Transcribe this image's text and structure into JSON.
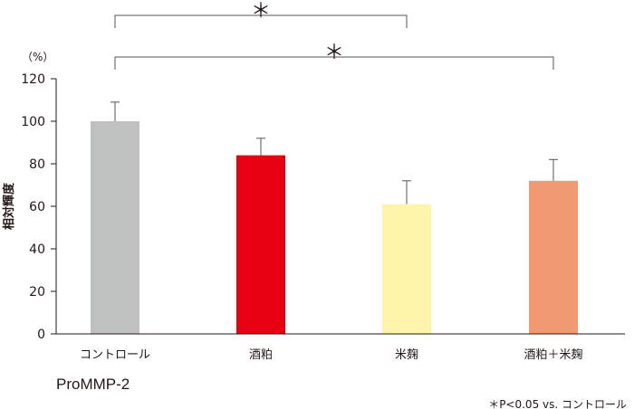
{
  "chart_data": {
    "type": "bar",
    "categories": [
      "コントロール",
      "酒粕",
      "米麹",
      "酒粕＋米麹"
    ],
    "values": [
      100,
      84,
      61,
      72
    ],
    "errors": [
      9,
      8,
      11,
      10
    ],
    "colors": [
      "#bfc1c0",
      "#e60012",
      "#fff5aa",
      "#f19a72"
    ],
    "ylabel": "相対輝度",
    "yunit": "（%）",
    "ylim": [
      0,
      120
    ],
    "yticks": [
      0,
      20,
      40,
      60,
      80,
      100,
      120
    ],
    "grid": false,
    "significance": [
      {
        "from": 0,
        "to": 2,
        "label": "＊"
      },
      {
        "from": 0,
        "to": 3,
        "label": "＊"
      }
    ],
    "protein_label": "ProMMP-2",
    "footnote": "＊P<0.05 vs. コントロール"
  }
}
